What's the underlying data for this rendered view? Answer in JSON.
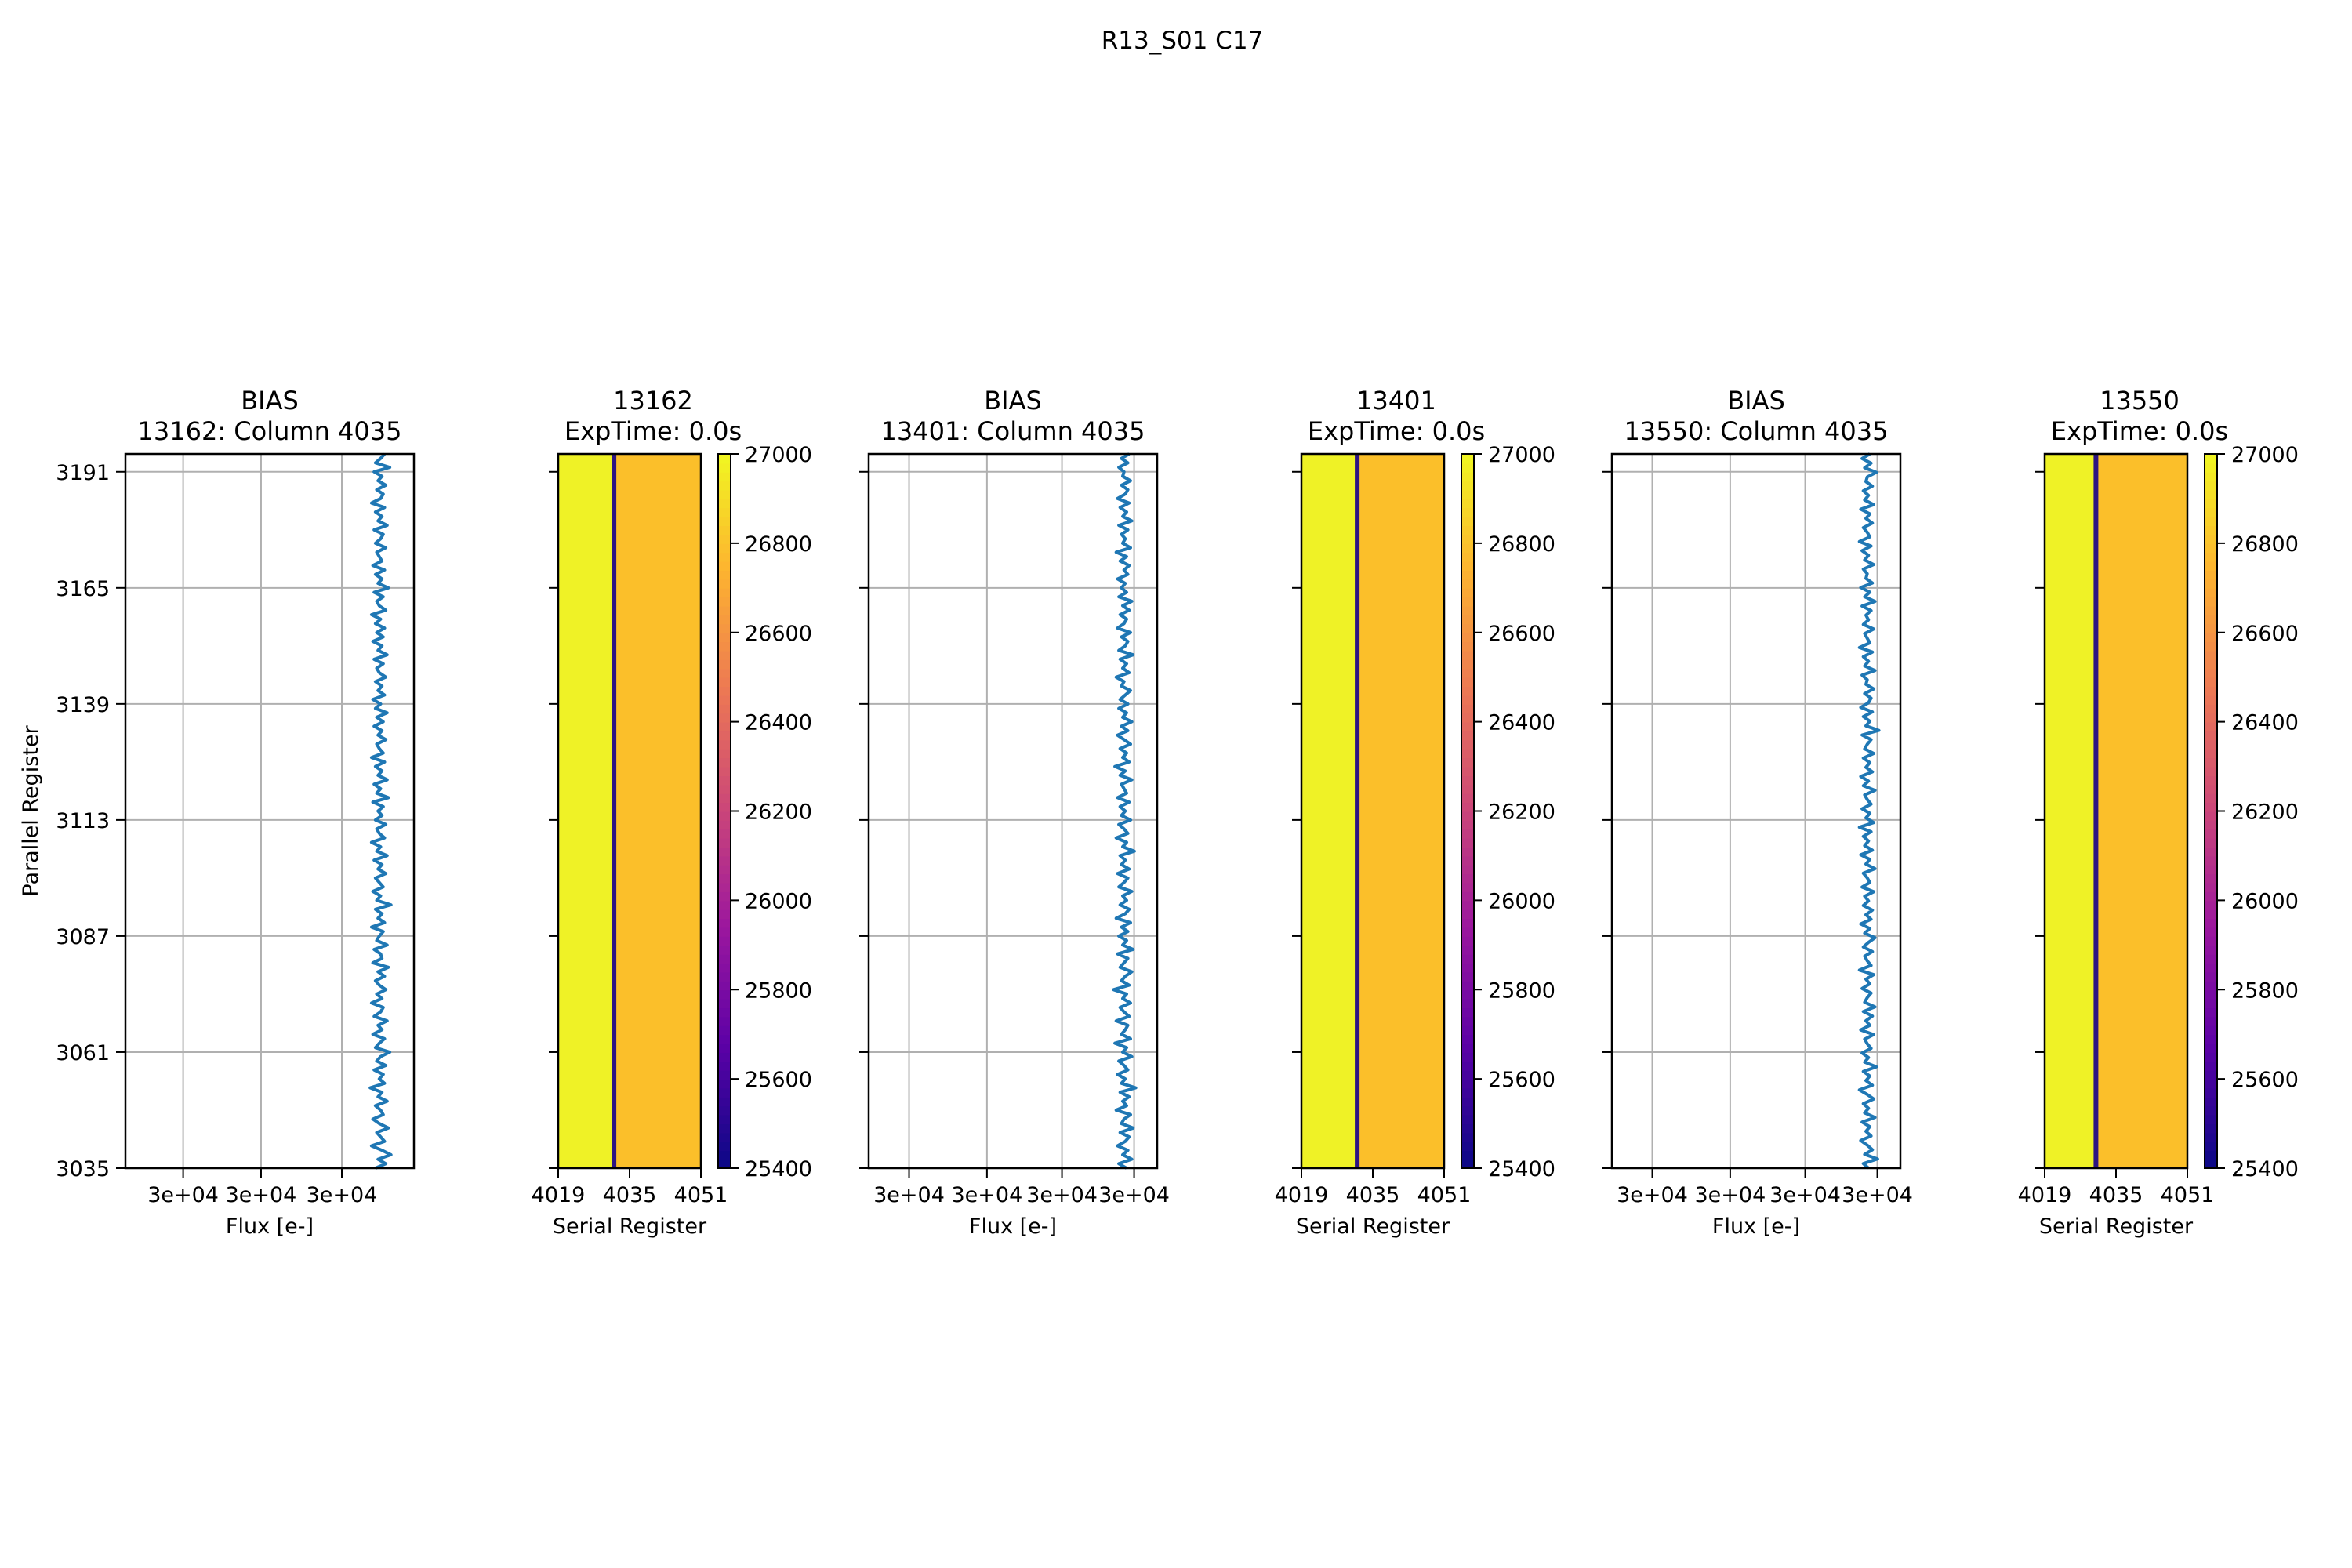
{
  "figure_title": "R13_S01 C17",
  "colors": {
    "line": "#1f77b4",
    "grid": "#b0b0b0",
    "image_left": "#eff226",
    "image_right": "#fbbf2a",
    "image_column": "#2d1482",
    "cmap": [
      "#0d0887",
      "#5c01a6",
      "#9c179e",
      "#cc4778",
      "#ed7953",
      "#fdb42f",
      "#f0f921"
    ]
  },
  "chart_data": [
    {
      "type": "line",
      "title_line1": "BIAS",
      "title_line2": "13162: Column 4035",
      "xlabel": "Flux [e-]",
      "ylabel": "Parallel Register",
      "xticks": [
        "3e+04",
        "3e+04",
        "3e+04"
      ],
      "yticks": [
        "3035",
        "3061",
        "3087",
        "3113",
        "3139",
        "3165",
        "3191"
      ],
      "ylim": [
        3035,
        3195
      ],
      "x_offsets": [
        -0.3,
        0.5,
        -0.1,
        0.9,
        0.2,
        -0.6,
        0.4,
        0.1,
        -0.2,
        0.7,
        0.0,
        -0.5,
        0.3,
        0.1,
        -0.3,
        0.6,
        -0.1,
        0.2,
        -0.7,
        0.4,
        0.0,
        0.3,
        -0.4,
        0.5,
        -0.2,
        0.1,
        0.8,
        -0.3,
        0.0,
        0.4,
        -0.5,
        0.2,
        -0.1,
        0.6,
        -0.4,
        0.1,
        0.3,
        -0.6,
        0.2,
        -0.2,
        0.5,
        0.0,
        -0.3,
        0.4,
        -0.1,
        0.7,
        -0.5,
        0.2,
        0.1,
        -0.4,
        0.6,
        -0.2,
        0.0,
        0.3,
        -0.6,
        0.4,
        -0.1,
        0.2,
        -0.3,
        0.9,
        -0.2,
        0.1,
        -0.5,
        0.3,
        0.0,
        -0.3,
        0.5,
        -0.1,
        0.2,
        -0.4,
        0.6,
        -0.2,
        0.1,
        -0.6,
        0.4,
        0.0,
        -0.2,
        0.5,
        -0.3,
        0.2,
        -0.1,
        0.3,
        -0.5,
        0.7,
        -0.2,
        0.1,
        -0.4,
        0.6,
        -0.1,
        0.2,
        -0.3,
        0.4,
        -0.6,
        0.3,
        0.0,
        -0.2,
        0.5,
        -0.1,
        0.2,
        -0.4,
        0.3,
        -0.2,
        0.6,
        -0.3,
        0.1,
        -0.5,
        0.4,
        -0.1,
        0.2,
        -0.3,
        0.5,
        0.0,
        -0.2,
        0.3,
        -0.4,
        0.6,
        -0.1,
        0.2,
        -0.5,
        0.3,
        -0.2,
        0.4,
        -0.3,
        0.1,
        -0.6,
        0.5,
        0.0,
        -0.2,
        0.3,
        -0.4,
        0.7,
        -0.1,
        0.2,
        -0.3,
        0.4,
        -0.5,
        0.2,
        0.0,
        -0.2,
        0.5,
        -0.3,
        0.1,
        0.3,
        -0.4,
        0.6,
        -0.1,
        0.2,
        -0.3,
        0.4,
        -0.6,
        0.1,
        0.3,
        -0.2,
        0.5,
        -0.1,
        0.2,
        -0.4,
        0.8,
        -0.3,
        0.1,
        0.4
      ]
    },
    {
      "type": "heatmap",
      "title_line1": "13162",
      "title_line2": "ExpTime: 0.0s",
      "xlabel": "Serial Register",
      "xticks": [
        "4019",
        "4035",
        "4051"
      ],
      "colorbar_ticks": [
        "25400",
        "25600",
        "25800",
        "26000",
        "26200",
        "26400",
        "26600",
        "26800",
        "27000"
      ],
      "color_range": [
        25400,
        27000
      ],
      "column_range": [
        4019,
        4051
      ],
      "boundary_column": 4031,
      "dark_column_value": 25450
    },
    {
      "type": "line",
      "title_line1": "BIAS",
      "title_line2": "13401: Column 4035",
      "xlabel": "Flux [e-]",
      "xticks": [
        "3e+04",
        "3e+04",
        "3e+04",
        "3e+04"
      ],
      "ylim": [
        3035,
        3195
      ],
      "x_offsets": [
        0.2,
        -0.4,
        0.6,
        -0.1,
        0.3,
        -0.5,
        0.1,
        0.4,
        -0.3,
        0.7,
        -0.2,
        0.0,
        0.5,
        -0.6,
        0.2,
        -0.1,
        0.4,
        -0.3,
        0.9,
        -0.2,
        0.1,
        -0.5,
        0.3,
        0.0,
        -0.4,
        0.6,
        -0.1,
        0.2,
        -0.7,
        0.5,
        -0.2,
        0.1,
        0.3,
        -0.6,
        0.4,
        0.0,
        -0.3,
        0.5,
        -0.1,
        0.2,
        -0.8,
        0.4,
        -0.2,
        0.1,
        0.6,
        -0.3,
        0.0,
        0.3,
        -0.5,
        0.7,
        -0.1,
        0.2,
        -0.4,
        0.3,
        -0.2,
        0.5,
        -0.6,
        0.1,
        0.4,
        -0.3,
        0.2,
        -0.1,
        0.6,
        -0.4,
        0.0,
        0.3,
        -0.5,
        0.4,
        -0.2,
        0.1,
        -0.3,
        0.8,
        -0.1,
        0.2,
        -0.6,
        0.3,
        0.0,
        -0.4,
        0.5,
        -0.2,
        0.1,
        -0.3,
        0.4,
        -0.5,
        0.2,
        0.0,
        -0.2,
        0.6,
        -0.3,
        0.1,
        -0.7,
        0.4,
        -0.1,
        0.2,
        -0.3,
        0.5,
        0.0,
        -0.5,
        0.3,
        -0.2,
        0.6,
        -0.1,
        0.2,
        -0.4,
        0.3,
        -0.3,
        0.1,
        0.5,
        -0.2,
        0.0,
        -0.6,
        0.4,
        -0.1,
        0.2,
        -0.3,
        0.7,
        -0.4,
        0.1,
        0.3,
        -0.2,
        0.5,
        -0.5,
        0.0,
        0.2,
        -0.3,
        0.4,
        -0.1,
        0.6,
        -0.4,
        0.2,
        -0.2,
        0.1,
        -0.5,
        0.3,
        0.0,
        0.4,
        -0.3,
        0.2,
        -0.6,
        0.5,
        -0.1,
        0.1,
        -0.2,
        0.3,
        -0.4,
        0.6,
        -0.1,
        0.2,
        -0.3,
        0.4,
        -0.5,
        0.1,
        0.3,
        -0.2,
        0.5,
        -0.1,
        0.0,
        -0.4,
        0.3,
        -0.2,
        0.4
      ]
    },
    {
      "type": "heatmap",
      "title_line1": "13401",
      "title_line2": "ExpTime: 0.0s",
      "xlabel": "Serial Register",
      "xticks": [
        "4019",
        "4035",
        "4051"
      ],
      "colorbar_ticks": [
        "25400",
        "25600",
        "25800",
        "26000",
        "26200",
        "26400",
        "26600",
        "26800",
        "27000"
      ],
      "color_range": [
        25400,
        27000
      ],
      "column_range": [
        4019,
        4051
      ],
      "boundary_column": 4031,
      "dark_column_value": 25450
    },
    {
      "type": "line",
      "title_line1": "BIAS",
      "title_line2": "13550: Column 4035",
      "xlabel": "Flux [e-]",
      "xticks": [
        "3e+04",
        "3e+04",
        "3e+04",
        "3e+04"
      ],
      "ylim": [
        3035,
        3195
      ],
      "x_offsets": [
        0.1,
        -0.3,
        0.8,
        -0.2,
        0.4,
        0.0,
        -0.5,
        0.3,
        -0.1,
        0.2,
        -0.4,
        0.6,
        -0.2,
        0.1,
        -0.3,
        0.5,
        0.0,
        -0.6,
        0.4,
        -0.1,
        0.2,
        -0.3,
        0.7,
        -0.2,
        0.1,
        -0.4,
        0.3,
        0.0,
        -0.2,
        0.5,
        -0.5,
        0.2,
        -0.1,
        0.4,
        -0.3,
        0.6,
        -0.2,
        0.0,
        0.3,
        -0.4,
        0.2,
        -0.1,
        0.5,
        -0.6,
        0.3,
        0.0,
        -0.2,
        0.4,
        -0.3,
        0.1,
        0.6,
        -0.2,
        0.2,
        -0.5,
        0.3,
        -0.1,
        0.4,
        -0.3,
        0.1,
        -0.2,
        0.5,
        -0.4,
        0.2,
        0.0,
        -0.3,
        0.6,
        -0.1,
        0.2,
        -0.5,
        0.4,
        -0.2,
        0.1,
        -0.3,
        0.3,
        -0.6,
        0.5,
        -0.1,
        0.2,
        -0.4,
        0.3,
        0.0,
        -0.2,
        0.6,
        -0.3,
        0.1,
        -0.5,
        0.4,
        -0.1,
        0.2,
        -0.3,
        0.5,
        -0.2,
        0.0,
        0.3,
        -0.4,
        0.9,
        -0.1,
        0.2,
        -0.3,
        0.4,
        -0.5,
        0.1,
        0.3,
        -0.2,
        0.5,
        -0.1,
        0.0,
        -0.4,
        0.6,
        -0.2,
        0.1,
        -0.3,
        0.4,
        -0.6,
        0.2,
        0.0,
        -0.2,
        0.5,
        -0.3,
        0.1,
        -0.1,
        0.3,
        -0.4,
        0.6,
        -0.2,
        0.2,
        -0.5,
        0.4,
        -0.1,
        0.0,
        -0.3,
        0.5,
        -0.2,
        0.1,
        -0.4,
        0.3,
        -0.6,
        0.2,
        0.0,
        -0.3,
        0.4,
        -0.1,
        0.2,
        -0.5,
        0.5,
        -0.2,
        0.1,
        -0.3,
        0.4,
        -0.1,
        0.0,
        0.7,
        -0.2,
        0.3,
        -0.4,
        0.2
      ]
    },
    {
      "type": "heatmap",
      "title_line1": "13550",
      "title_line2": "ExpTime: 0.0s",
      "xlabel": "Serial Register",
      "xticks": [
        "4019",
        "4035",
        "4051"
      ],
      "colorbar_ticks": [
        "25400",
        "25600",
        "25800",
        "26000",
        "26200",
        "26400",
        "26600",
        "26800",
        "27000"
      ],
      "color_range": [
        25400,
        27000
      ],
      "column_range": [
        4019,
        4051
      ],
      "boundary_column": 4030,
      "dark_column_value": 25450
    }
  ]
}
